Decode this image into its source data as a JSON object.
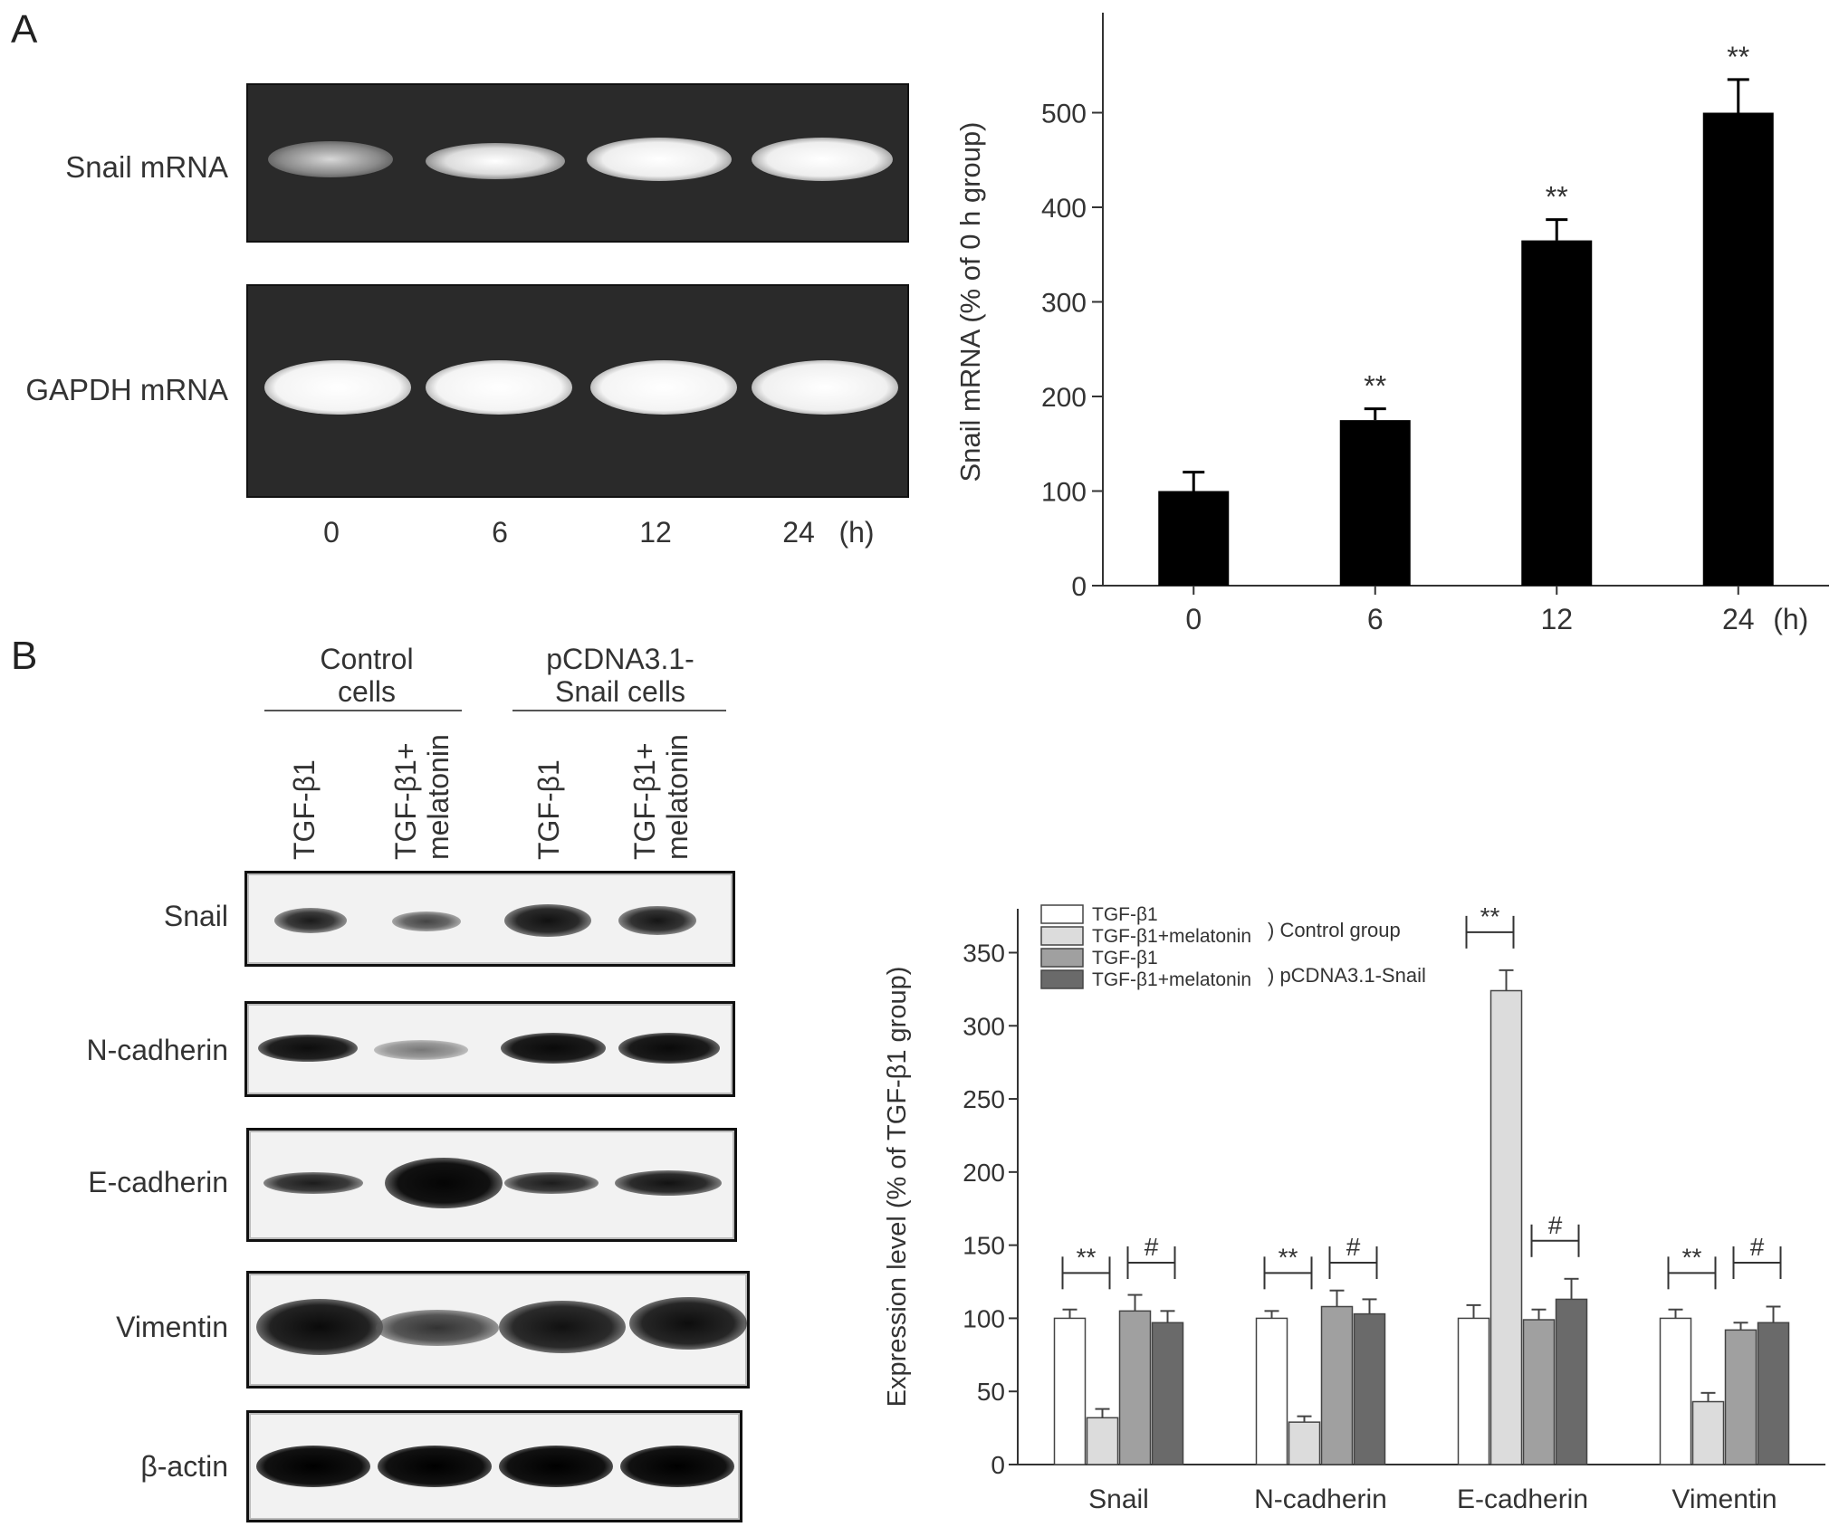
{
  "panel_a_label": "A",
  "panel_b_label": "B",
  "gel": {
    "rows": [
      "Snail mRNA",
      "GAPDH mRNA"
    ],
    "lanes": [
      "0",
      "6",
      "12",
      "24"
    ],
    "unit": "(h)"
  },
  "blot": {
    "groups": [
      "Control\ncells",
      "pCDNA3.1-\nSnail cells"
    ],
    "lanes": [
      "TGF-β1",
      "TGF-β1+\nmelatonin",
      "TGF-β1",
      "TGF-β1+\nmelatonin"
    ],
    "rows": [
      "Snail",
      "N-cadherin",
      "E-cadherin",
      "Vimentin",
      "β-actin"
    ]
  },
  "chart_data": [
    {
      "type": "bar",
      "categories": [
        "0",
        "6",
        "12",
        "24"
      ],
      "x_unit_label": "(h)",
      "values": [
        100,
        175,
        365,
        500
      ],
      "errors": [
        20,
        12,
        22,
        35
      ],
      "significance": [
        "",
        "**",
        "**",
        "**"
      ],
      "xlabel": "",
      "ylabel": "Snail mRNA (% of 0 h group)",
      "ylim": [
        0,
        600
      ],
      "yticks": [
        0,
        100,
        200,
        300,
        400,
        500
      ],
      "color": "#000000",
      "grid": false
    },
    {
      "type": "bar",
      "categories": [
        "Snail",
        "N-cadherin",
        "E-cadherin",
        "Vimentin"
      ],
      "series": [
        {
          "name": "TGF-β1",
          "values": [
            100,
            100,
            100,
            100
          ],
          "errors": [
            6,
            5,
            9,
            6
          ],
          "color": "#ffffff"
        },
        {
          "name": "TGF-β1+melatonin",
          "values": [
            32,
            29,
            324,
            43
          ],
          "errors": [
            6,
            4,
            14,
            6
          ],
          "color": "#dcdcdc"
        },
        {
          "name": "TGF-β1",
          "values": [
            105,
            108,
            99,
            92
          ],
          "errors": [
            11,
            11,
            7,
            5
          ],
          "color": "#a0a0a0"
        },
        {
          "name": "TGF-β1+melatonin",
          "values": [
            97,
            103,
            113,
            97
          ],
          "errors": [
            8,
            10,
            14,
            11
          ],
          "color": "#6a6a6a"
        }
      ],
      "legend_groups": [
        ") Control group",
        ") pCDNA3.1-Snail"
      ],
      "legend_position": "top-left",
      "significance_left": [
        "**",
        "**",
        "**",
        "**"
      ],
      "significance_right": [
        "#",
        "#",
        "#",
        "#"
      ],
      "xlabel": "",
      "ylabel": "Expression level (% of TGF-β1 group)",
      "ylim": [
        0,
        380
      ],
      "yticks": [
        0,
        50,
        100,
        150,
        200,
        250,
        300,
        350
      ],
      "grid": false
    }
  ]
}
